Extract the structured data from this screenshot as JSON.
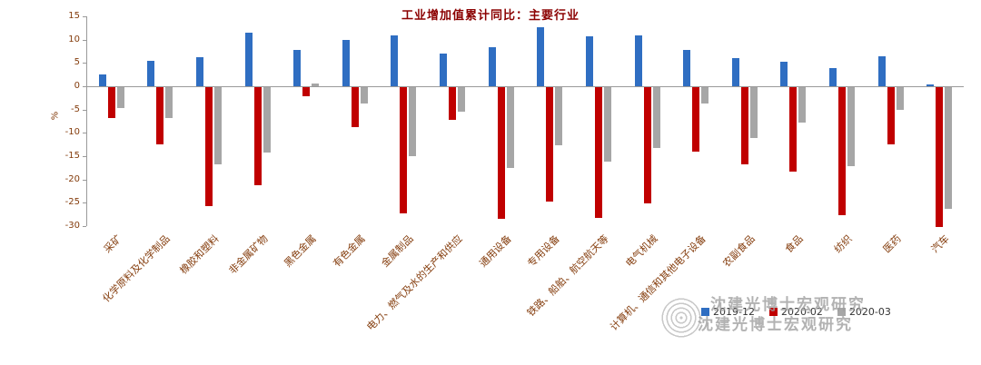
{
  "watermark": {
    "text": "沈建光博士宏观研究"
  },
  "chart_data": {
    "type": "bar",
    "title": "工业增加值累计同比：主要行业",
    "xlabel": "",
    "ylabel": "%",
    "ylim": [
      -30,
      15
    ],
    "yticks": [
      15,
      10,
      5,
      0,
      -5,
      -10,
      -15,
      -20,
      -25,
      -30
    ],
    "grid": false,
    "legend_position": "bottom-right",
    "categories": [
      "采矿",
      "化学原料及化学制品",
      "橡胶和塑料",
      "非金属矿物",
      "黑色金属",
      "有色金属",
      "金属制品",
      "电力、燃气及水的生产和供应",
      "通用设备",
      "专用设备",
      "铁路、船舶、航空航天等",
      "电气机械",
      "计算机、通信和其他电子设备",
      "农副食品",
      "食品",
      "纺织",
      "医药",
      "汽车"
    ],
    "series": [
      {
        "name": "2019-12",
        "color": "#2f6ec2",
        "values": [
          2.5,
          5.4,
          6.3,
          11.5,
          7.8,
          10.0,
          11.0,
          7.0,
          8.3,
          12.6,
          10.8,
          11.0,
          7.7,
          6.0,
          5.2,
          3.9,
          6.4,
          0.3
        ]
      },
      {
        "name": "2020-02",
        "color": "#c00000",
        "values": [
          -6.6,
          -12.3,
          -25.6,
          -21.0,
          -2.0,
          -8.5,
          -27.0,
          -7.1,
          -28.2,
          -24.5,
          -28.1,
          -24.9,
          -13.8,
          -16.5,
          -18.2,
          -27.5,
          -12.3,
          -30.0
        ]
      },
      {
        "name": "2020-03",
        "color": "#a6a6a6",
        "values": [
          -4.4,
          -6.7,
          -16.5,
          -14.0,
          0.5,
          -3.5,
          -14.8,
          -5.2,
          -17.3,
          -12.4,
          -16.0,
          -13.0,
          -3.6,
          -10.9,
          -7.6,
          -17.0,
          -4.9,
          -26.2
        ]
      }
    ]
  }
}
